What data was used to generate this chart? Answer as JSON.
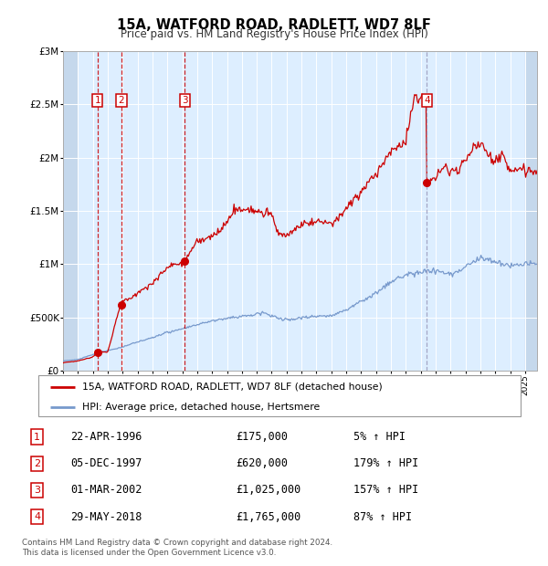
{
  "title": "15A, WATFORD ROAD, RADLETT, WD7 8LF",
  "subtitle": "Price paid vs. HM Land Registry's House Price Index (HPI)",
  "footer": "Contains HM Land Registry data © Crown copyright and database right 2024.\nThis data is licensed under the Open Government Licence v3.0.",
  "legend_house": "15A, WATFORD ROAD, RADLETT, WD7 8LF (detached house)",
  "legend_hpi": "HPI: Average price, detached house, Hertsmere",
  "sales": [
    {
      "id": 1,
      "date": "22-APR-1996",
      "price": 175000,
      "pct": "5% ↑ HPI",
      "x": 1996.31
    },
    {
      "id": 2,
      "date": "05-DEC-1997",
      "price": 620000,
      "pct": "179% ↑ HPI",
      "x": 1997.92
    },
    {
      "id": 3,
      "date": "01-MAR-2002",
      "price": 1025000,
      "pct": "157% ↑ HPI",
      "x": 2002.17
    },
    {
      "id": 4,
      "date": "29-MAY-2018",
      "price": 1765000,
      "pct": "87% ↑ HPI",
      "x": 2018.41
    }
  ],
  "price_display": [
    "£175,000",
    "£620,000",
    "£1,025,000",
    "£1,765,000"
  ],
  "bg_color": "#ddeeff",
  "hatch_color": "#c0d4e8",
  "red_line_color": "#cc0000",
  "blue_line_color": "#7799cc",
  "ylim": [
    0,
    3000000
  ],
  "xlim_start": 1994.0,
  "xlim_end": 2025.8
}
